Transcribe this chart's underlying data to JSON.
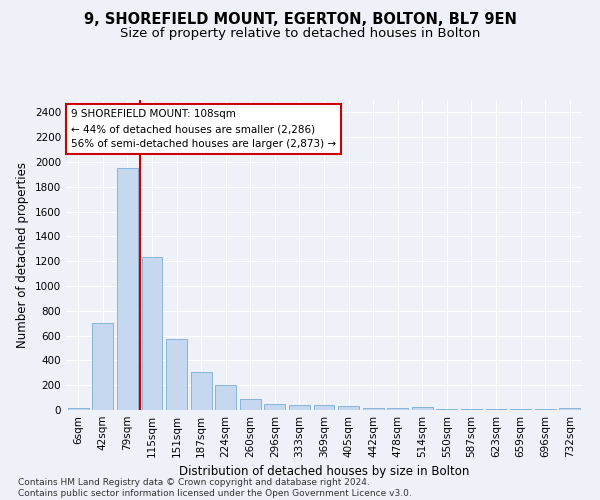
{
  "title": "9, SHOREFIELD MOUNT, EGERTON, BOLTON, BL7 9EN",
  "subtitle": "Size of property relative to detached houses in Bolton",
  "xlabel": "Distribution of detached houses by size in Bolton",
  "ylabel": "Number of detached properties",
  "bar_labels": [
    "6sqm",
    "42sqm",
    "79sqm",
    "115sqm",
    "151sqm",
    "187sqm",
    "224sqm",
    "260sqm",
    "296sqm",
    "333sqm",
    "369sqm",
    "405sqm",
    "442sqm",
    "478sqm",
    "514sqm",
    "550sqm",
    "587sqm",
    "623sqm",
    "659sqm",
    "696sqm",
    "732sqm"
  ],
  "bar_values": [
    15,
    700,
    1950,
    1230,
    575,
    305,
    200,
    85,
    45,
    38,
    38,
    35,
    18,
    18,
    25,
    8,
    5,
    5,
    5,
    5,
    20
  ],
  "bar_color": "#c5d8ef",
  "bar_edge_color": "#7aadd4",
  "vline_color": "#cc0000",
  "vline_x_index": 2,
  "annotation_text": "9 SHOREFIELD MOUNT: 108sqm\n← 44% of detached houses are smaller (2,286)\n56% of semi-detached houses are larger (2,873) →",
  "annotation_box_color": "#ffffff",
  "annotation_box_edge": "#cc0000",
  "ylim": [
    0,
    2500
  ],
  "yticks": [
    0,
    200,
    400,
    600,
    800,
    1000,
    1200,
    1400,
    1600,
    1800,
    2000,
    2200,
    2400
  ],
  "footer": "Contains HM Land Registry data © Crown copyright and database right 2024.\nContains public sector information licensed under the Open Government Licence v3.0.",
  "bg_color": "#eef2f8",
  "grid_color": "#ffffff",
  "title_fontsize": 10.5,
  "subtitle_fontsize": 9.5,
  "axis_label_fontsize": 8.5,
  "tick_fontsize": 7.5,
  "footer_fontsize": 6.5
}
